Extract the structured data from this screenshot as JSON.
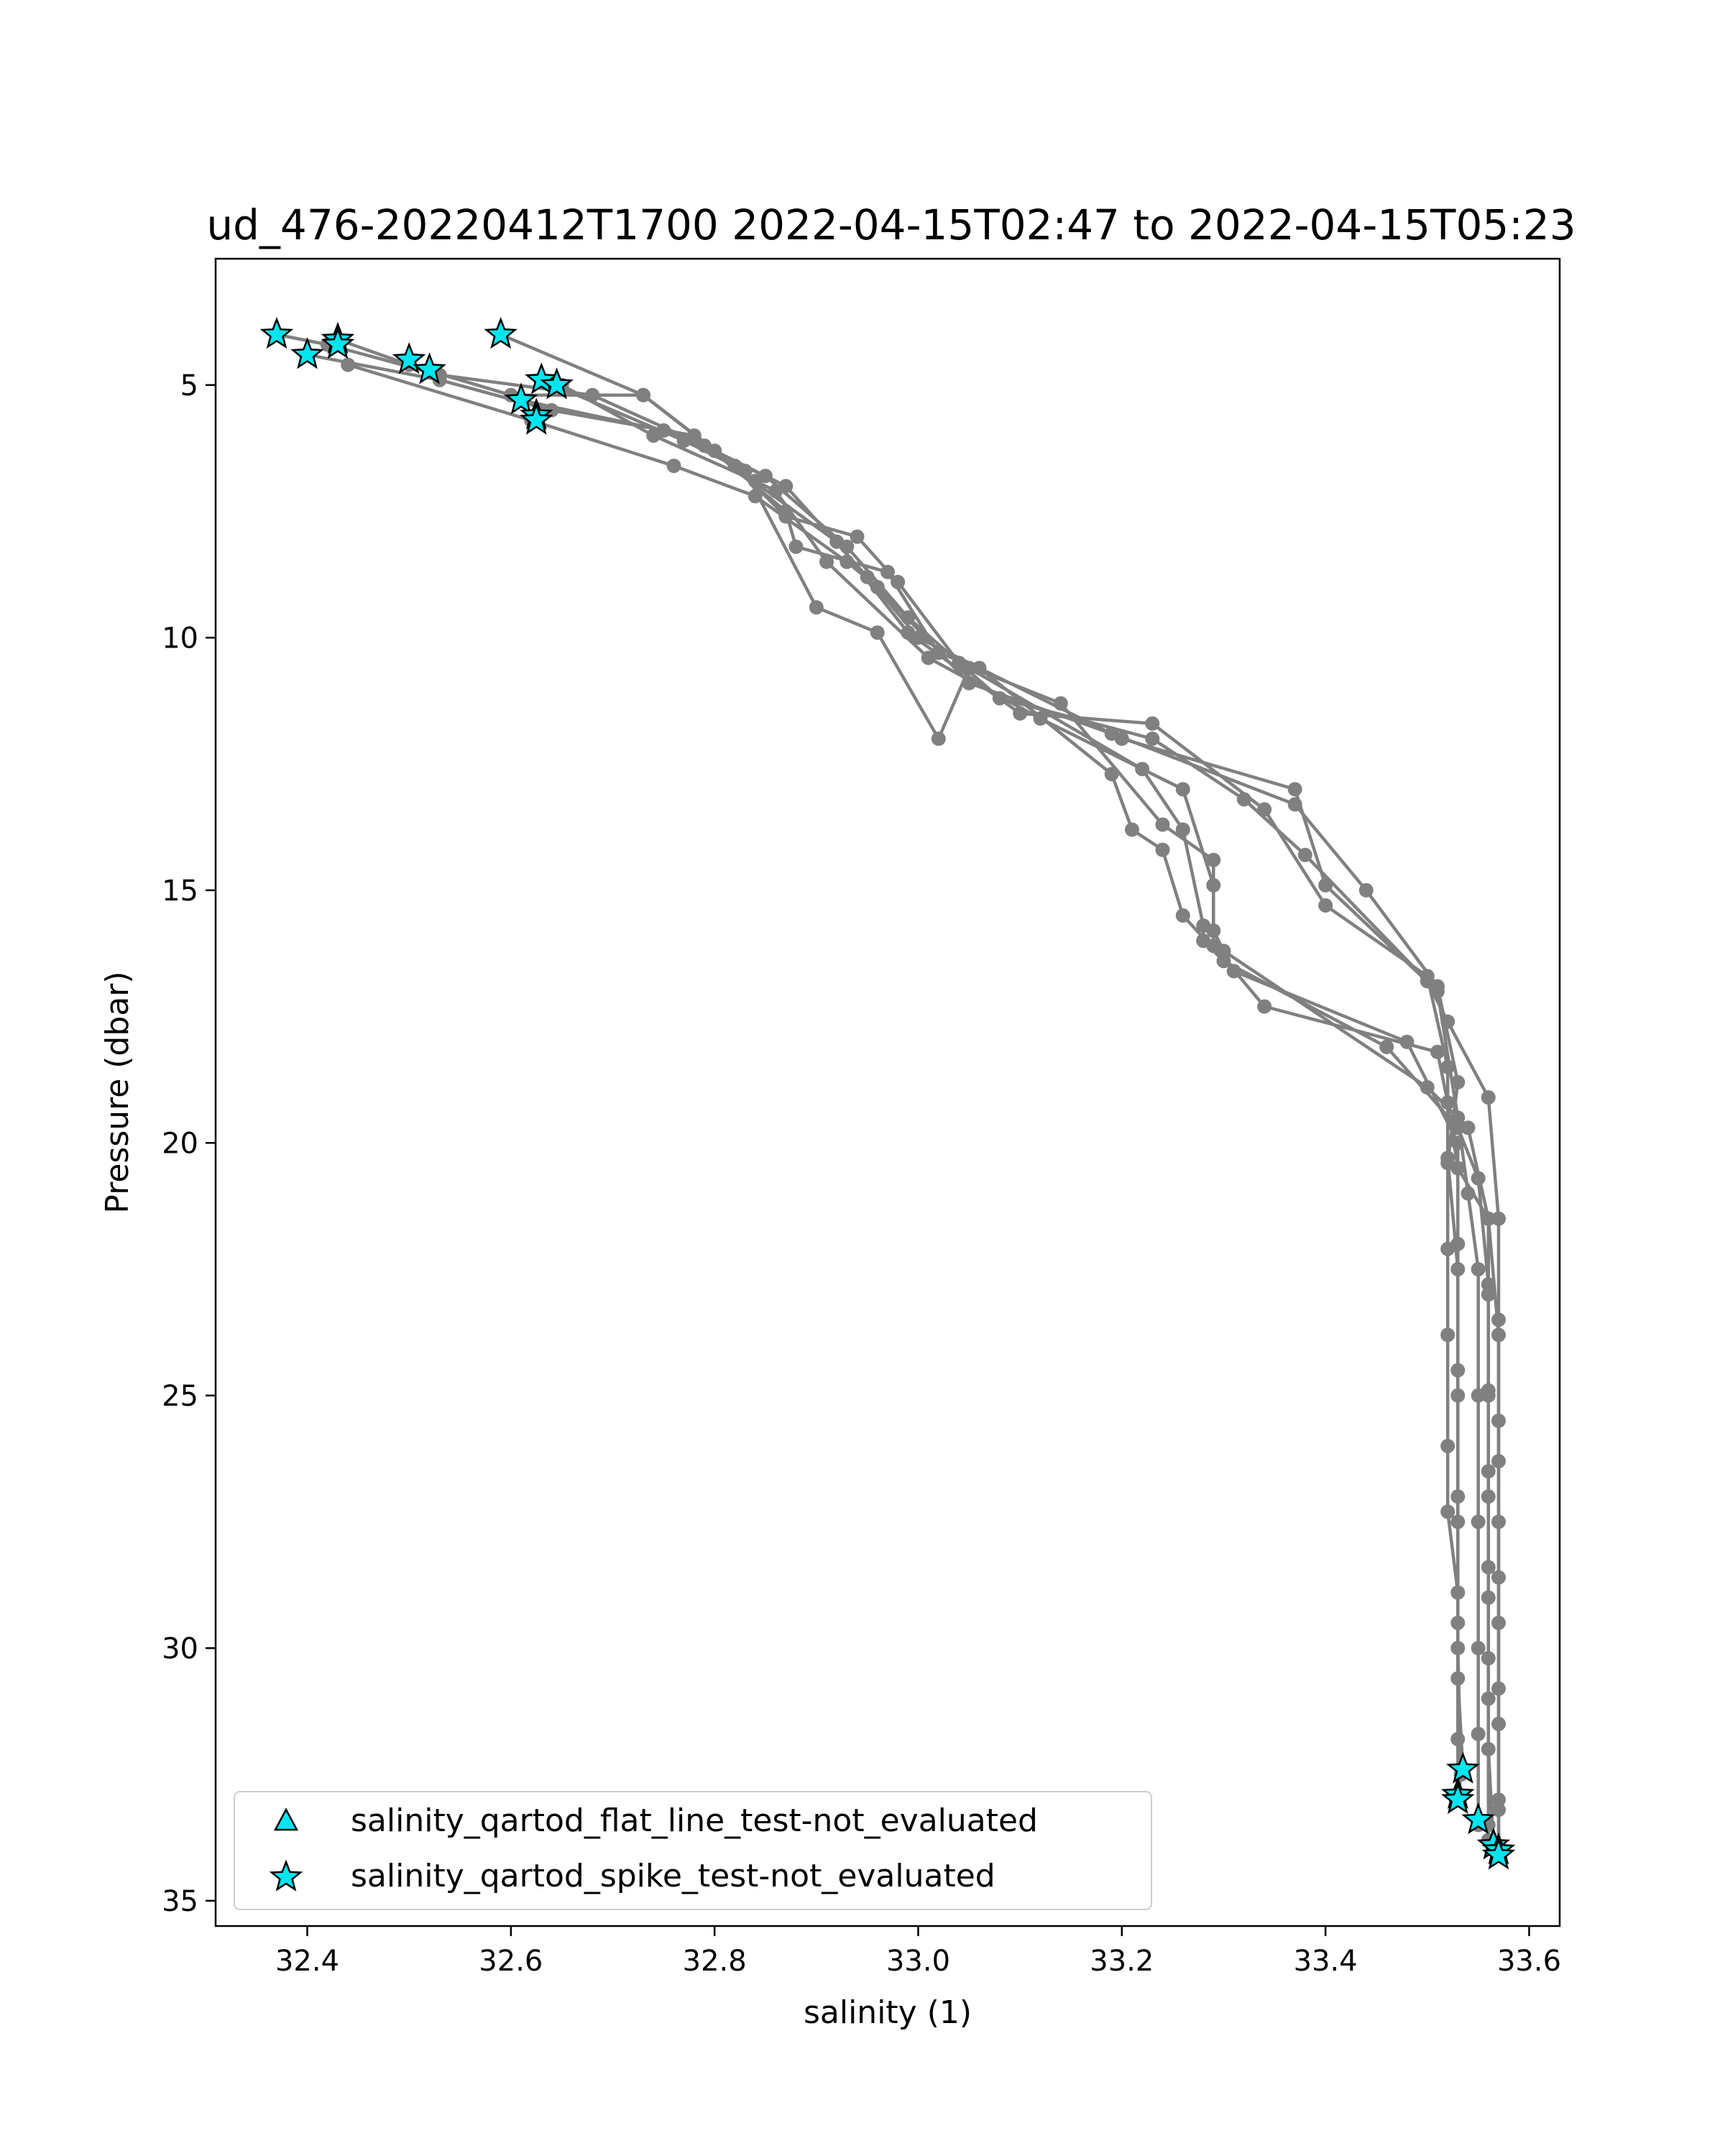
{
  "chart_data": {
    "type": "line",
    "title": "ud_476-20220412T1700 2022-04-15T02:47 to 2022-04-15T05:23",
    "xlabel": "salinity (1)",
    "ylabel": "Pressure (dbar)",
    "xlim": [
      32.31,
      33.63
    ],
    "ylim": [
      35.5,
      2.5
    ],
    "y_inverted": true,
    "xticks": [
      32.4,
      32.6,
      32.8,
      33.0,
      33.2,
      33.4,
      33.6
    ],
    "xtick_labels": [
      "32.4",
      "32.6",
      "32.8",
      "33.0",
      "33.2",
      "33.4",
      "33.6"
    ],
    "yticks": [
      5,
      10,
      15,
      20,
      25,
      30,
      35
    ],
    "ytick_labels": [
      "5",
      "10",
      "15",
      "20",
      "25",
      "30",
      "35"
    ],
    "grid": false,
    "line_color": "#808080",
    "marker_color": "#00e5ee",
    "series": [
      {
        "points": [
          [
            32.37,
            4.0
          ],
          [
            32.42,
            4.2
          ],
          [
            32.53,
            4.8
          ],
          [
            32.68,
            5.2
          ],
          [
            32.79,
            6.2
          ],
          [
            32.92,
            8.1
          ],
          [
            32.99,
            9.9
          ],
          [
            33.1,
            11.5
          ],
          [
            33.23,
            11.7
          ],
          [
            33.34,
            13.4
          ],
          [
            33.4,
            15.3
          ],
          [
            33.5,
            16.7
          ],
          [
            33.52,
            18.5
          ],
          [
            33.52,
            20.3
          ],
          [
            33.53,
            22.5
          ],
          [
            33.53,
            25.0
          ],
          [
            33.53,
            27.5
          ],
          [
            33.53,
            30.0
          ],
          [
            33.533,
            32.5
          ],
          [
            33.53,
            33.0
          ]
        ]
      },
      {
        "points": [
          [
            32.43,
            4.1
          ],
          [
            32.5,
            4.6
          ],
          [
            32.6,
            5.2
          ],
          [
            32.73,
            5.2
          ],
          [
            32.8,
            6.3
          ],
          [
            32.87,
            7.0
          ],
          [
            32.95,
            8.8
          ],
          [
            33.0,
            10.0
          ],
          [
            33.2,
            12.0
          ],
          [
            33.37,
            13.0
          ],
          [
            33.4,
            14.9
          ],
          [
            33.51,
            17.0
          ],
          [
            33.53,
            19.5
          ],
          [
            33.54,
            21.0
          ],
          [
            33.55,
            22.5
          ],
          [
            33.55,
            25.0
          ],
          [
            33.55,
            27.5
          ],
          [
            33.55,
            30.0
          ],
          [
            33.55,
            31.7
          ],
          [
            33.55,
            33.5
          ]
        ]
      },
      {
        "points": [
          [
            32.4,
            4.4
          ],
          [
            32.53,
            4.9
          ],
          [
            32.64,
            5.5
          ],
          [
            32.78,
            6.0
          ],
          [
            32.87,
            7.5
          ],
          [
            32.88,
            8.2
          ],
          [
            32.97,
            8.7
          ],
          [
            33.02,
            10.3
          ],
          [
            33.06,
            10.6
          ],
          [
            33.19,
            12.7
          ],
          [
            33.21,
            13.8
          ],
          [
            33.24,
            14.2
          ],
          [
            33.26,
            15.5
          ],
          [
            33.31,
            16.6
          ],
          [
            33.48,
            18.0
          ],
          [
            33.53,
            20.0
          ],
          [
            33.53,
            22.0
          ],
          [
            33.53,
            24.5
          ],
          [
            33.53,
            27.0
          ],
          [
            33.53,
            29.5
          ],
          [
            33.53,
            31.8
          ],
          [
            33.53,
            32.9
          ]
        ]
      },
      {
        "points": [
          [
            32.44,
            4.6
          ],
          [
            32.62,
            5.7
          ],
          [
            32.76,
            6.6
          ],
          [
            32.84,
            7.2
          ],
          [
            32.93,
            8.5
          ],
          [
            32.96,
            9.0
          ],
          [
            33.05,
            10.9
          ],
          [
            33.19,
            11.9
          ],
          [
            33.37,
            13.3
          ],
          [
            33.44,
            15.0
          ],
          [
            33.51,
            16.9
          ],
          [
            33.53,
            18.8
          ],
          [
            33.52,
            20.4
          ],
          [
            33.52,
            22.1
          ],
          [
            33.52,
            23.8
          ],
          [
            33.52,
            26.0
          ],
          [
            33.52,
            27.3
          ],
          [
            33.53,
            28.9
          ],
          [
            33.53,
            30.6
          ],
          [
            33.535,
            32.4
          ]
        ]
      },
      {
        "points": [
          [
            32.59,
            4.0
          ],
          [
            32.73,
            5.2
          ],
          [
            32.82,
            6.6
          ],
          [
            32.87,
            7.6
          ],
          [
            32.94,
            8.0
          ],
          [
            32.98,
            8.9
          ],
          [
            33.04,
            10.5
          ],
          [
            33.14,
            11.3
          ],
          [
            33.24,
            13.7
          ],
          [
            33.29,
            14.4
          ],
          [
            33.29,
            16.1
          ],
          [
            33.34,
            17.3
          ],
          [
            33.51,
            18.2
          ],
          [
            33.52,
            19.2
          ],
          [
            33.53,
            20.5
          ],
          [
            33.56,
            21.5
          ],
          [
            33.56,
            23.0
          ],
          [
            33.56,
            25.0
          ],
          [
            33.56,
            27.0
          ],
          [
            33.56,
            29.0
          ],
          [
            33.56,
            31.0
          ],
          [
            33.56,
            33.5
          ],
          [
            33.56,
            33.8
          ]
        ]
      },
      {
        "points": [
          [
            32.63,
            4.9
          ],
          [
            32.77,
            6.1
          ],
          [
            32.83,
            6.7
          ],
          [
            32.9,
            9.4
          ],
          [
            32.96,
            9.9
          ],
          [
            33.02,
            12.0
          ],
          [
            33.05,
            10.6
          ],
          [
            33.22,
            12.6
          ],
          [
            33.26,
            13.8
          ],
          [
            33.28,
            15.7
          ],
          [
            33.28,
            16.0
          ],
          [
            33.3,
            16.4
          ],
          [
            33.46,
            18.1
          ],
          [
            33.53,
            19.7
          ],
          [
            33.55,
            20.7
          ],
          [
            33.56,
            22.8
          ],
          [
            33.56,
            24.9
          ],
          [
            33.56,
            26.5
          ],
          [
            33.56,
            28.4
          ],
          [
            33.56,
            30.2
          ],
          [
            33.56,
            32.0
          ],
          [
            33.565,
            33.9
          ]
        ]
      },
      {
        "points": [
          [
            32.65,
            5.0
          ],
          [
            32.74,
            6.0
          ],
          [
            32.84,
            6.9
          ],
          [
            32.86,
            7.1
          ],
          [
            32.91,
            8.5
          ],
          [
            33.01,
            10.4
          ],
          [
            33.12,
            11.6
          ],
          [
            33.26,
            13.0
          ],
          [
            33.29,
            14.9
          ],
          [
            33.29,
            15.8
          ],
          [
            33.3,
            16.2
          ],
          [
            33.5,
            18.9
          ],
          [
            33.54,
            19.7
          ],
          [
            33.56,
            21.5
          ],
          [
            33.57,
            23.8
          ],
          [
            33.57,
            26.3
          ],
          [
            33.57,
            28.6
          ],
          [
            33.57,
            30.8
          ],
          [
            33.57,
            33.0
          ],
          [
            33.57,
            34.0
          ]
        ]
      },
      {
        "points": [
          [
            32.61,
            5.3
          ],
          [
            32.75,
            5.9
          ],
          [
            32.85,
            6.8
          ],
          [
            32.93,
            8.2
          ],
          [
            32.99,
            9.6
          ],
          [
            33.08,
            11.2
          ],
          [
            33.23,
            12.0
          ],
          [
            33.32,
            13.2
          ],
          [
            33.38,
            14.3
          ],
          [
            33.5,
            16.8
          ],
          [
            33.52,
            17.6
          ],
          [
            33.56,
            19.1
          ],
          [
            33.57,
            21.5
          ],
          [
            33.57,
            23.5
          ],
          [
            33.57,
            25.5
          ],
          [
            33.57,
            27.5
          ],
          [
            33.57,
            29.5
          ],
          [
            33.57,
            31.5
          ],
          [
            33.57,
            33.2
          ],
          [
            33.57,
            34.1
          ]
        ]
      }
    ],
    "spike_markers": [
      [
        32.37,
        4.0
      ],
      [
        32.43,
        4.1
      ],
      [
        32.43,
        4.2
      ],
      [
        32.4,
        4.4
      ],
      [
        32.5,
        4.5
      ],
      [
        32.52,
        4.7
      ],
      [
        32.59,
        4.0
      ],
      [
        32.63,
        4.9
      ],
      [
        32.645,
        5.0
      ],
      [
        32.61,
        5.3
      ],
      [
        32.625,
        5.6
      ],
      [
        32.625,
        5.7
      ],
      [
        33.535,
        32.4
      ],
      [
        33.53,
        32.9
      ],
      [
        33.53,
        33.0
      ],
      [
        33.55,
        33.4
      ],
      [
        33.565,
        33.9
      ],
      [
        33.57,
        34.0
      ],
      [
        33.57,
        34.1
      ]
    ],
    "legend": {
      "placement": "lower-left",
      "entries": [
        {
          "marker": "triangle",
          "label": "salinity_qartod_flat_line_test-not_evaluated"
        },
        {
          "marker": "star",
          "label": "salinity_qartod_spike_test-not_evaluated"
        }
      ]
    }
  }
}
